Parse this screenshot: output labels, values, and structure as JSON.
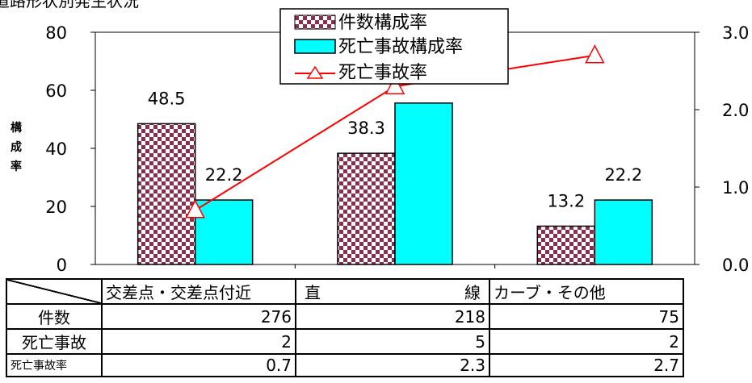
{
  "title_fragment": "道路形状別発生状況",
  "chart_data": {
    "type": "bar",
    "categories": [
      "交差点・交差点付近",
      "直　　　　　　線",
      "カーブ・その他"
    ],
    "series": [
      {
        "name": "件数構成率",
        "axis": "left",
        "kind": "bar",
        "pattern": "checker",
        "color": "#8b2e4e",
        "values": [
          48.5,
          38.3,
          13.2
        ],
        "labels": [
          "48.5",
          "38.3",
          "13.2"
        ]
      },
      {
        "name": "死亡事故構成率",
        "axis": "left",
        "kind": "bar",
        "color": "#00ffff",
        "values": [
          22.2,
          55.6,
          22.2
        ],
        "labels": [
          "22.2",
          "",
          "22.2"
        ]
      },
      {
        "name": "死亡事故率",
        "axis": "right",
        "kind": "line",
        "color": "#ff0000",
        "values": [
          0.7,
          2.3,
          2.7
        ]
      }
    ],
    "ylabel": "構成率",
    "ylim": [
      0,
      80
    ],
    "y_ticks": [
      "0",
      "20",
      "40",
      "60",
      "80"
    ],
    "y2lim": [
      0,
      3.0
    ],
    "y2_ticks": [
      "0.0",
      "1.0",
      "2.0",
      "3.0"
    ],
    "legend_position": "top-center",
    "grid": false
  },
  "table": {
    "headers": [
      "交差点・交差点付近",
      "直　　　　　　線",
      "カーブ・その他"
    ],
    "rows": [
      {
        "label": "件数",
        "values": [
          "276",
          "218",
          "75"
        ]
      },
      {
        "label": "死亡事故",
        "values": [
          "2",
          "5",
          "2"
        ]
      },
      {
        "label": "死亡事故率",
        "values": [
          "0.7",
          "2.3",
          "2.7"
        ]
      }
    ]
  }
}
